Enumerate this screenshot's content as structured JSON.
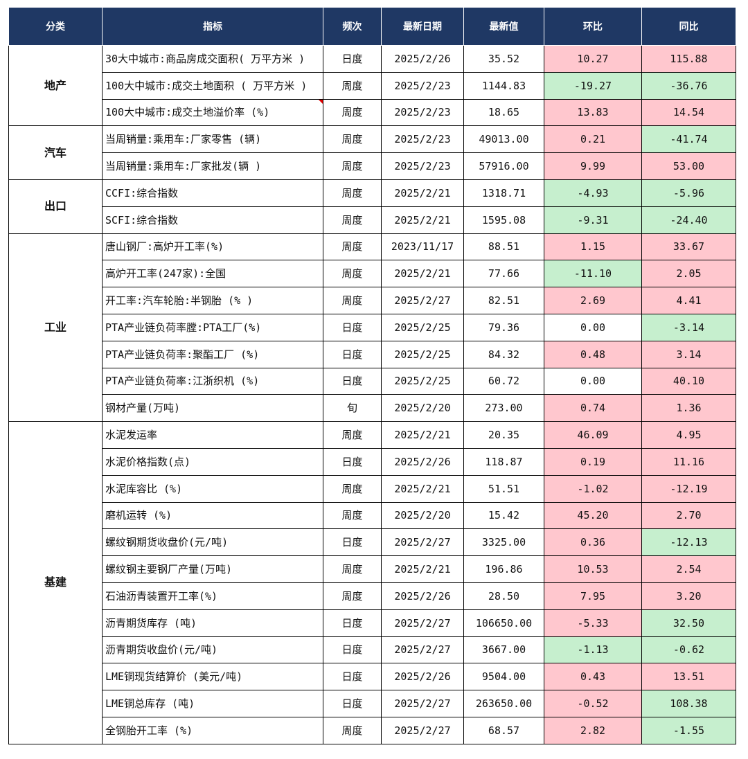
{
  "headers": [
    "分类",
    "指标",
    "频次",
    "最新日期",
    "最新值",
    "环比",
    "同比"
  ],
  "colors": {
    "header_bg": "#1f3864",
    "positive_bg": "#ffc7ce",
    "positive_text": "#c00000",
    "negative_bg": "#c6efce",
    "negative_text": "#006100"
  },
  "groups": [
    {
      "category": "地产",
      "rows": [
        {
          "indicator": "30大中城市:商品房成交面积( 万平方米 )",
          "freq": "日度",
          "date": "2025/2/26",
          "value": "35.52",
          "mom": "10.27",
          "yoy": "115.88"
        },
        {
          "indicator": "100大中城市:成交土地面积 ( 万平方米 )",
          "freq": "周度",
          "date": "2025/2/23",
          "value": "1144.83",
          "mom": "-19.27",
          "yoy": "-36.76"
        },
        {
          "indicator": "100大中城市:成交土地溢价率 (%)",
          "freq": "周度",
          "date": "2025/2/23",
          "value": "18.65",
          "mom": "13.83",
          "yoy": "14.54",
          "comment_marker": true
        }
      ]
    },
    {
      "category": "汽车",
      "rows": [
        {
          "indicator": "当周销量:乘用车:厂家零售 (辆)",
          "freq": "周度",
          "date": "2025/2/23",
          "value": "49013.00",
          "mom": "0.21",
          "yoy": "-41.74"
        },
        {
          "indicator": "当周销量:乘用车:厂家批发(辆 )",
          "freq": "周度",
          "date": "2025/2/23",
          "value": "57916.00",
          "mom": "9.99",
          "yoy": "53.00"
        }
      ]
    },
    {
      "category": "出口",
      "rows": [
        {
          "indicator": "CCFI:综合指数",
          "freq": "周度",
          "date": "2025/2/21",
          "value": "1318.71",
          "mom": "-4.93",
          "yoy": "-5.96"
        },
        {
          "indicator": "SCFI:综合指数",
          "freq": "周度",
          "date": "2025/2/21",
          "value": "1595.08",
          "mom": "-9.31",
          "yoy": "-24.40"
        }
      ]
    },
    {
      "category": "工业",
      "rows": [
        {
          "indicator": "唐山钢厂:高炉开工率(%)",
          "freq": "周度",
          "date": "2023/11/17",
          "value": "88.51",
          "mom": "1.15",
          "yoy": "33.67"
        },
        {
          "indicator": "高炉开工率(247家):全国",
          "freq": "周度",
          "date": "2025/2/21",
          "value": "77.66",
          "mom": "-11.10",
          "yoy": "2.05"
        },
        {
          "indicator": "开工率:汽车轮胎:半钢胎 (% )",
          "freq": "周度",
          "date": "2025/2/27",
          "value": "82.51",
          "mom": "2.69",
          "yoy": "4.41"
        },
        {
          "indicator": "PTA产业链负荷率膛:PTA工厂(%)",
          "freq": "日度",
          "date": "2025/2/25",
          "value": "79.36",
          "mom": "0.00",
          "yoy": "-3.14"
        },
        {
          "indicator": "PTA产业链负荷率:聚酯工厂 (%)",
          "freq": "日度",
          "date": "2025/2/25",
          "value": "84.32",
          "mom": "0.48",
          "yoy": "3.14"
        },
        {
          "indicator": "PTA产业链负荷率:江浙织机 (%)",
          "freq": "日度",
          "date": "2025/2/25",
          "value": "60.72",
          "mom": "0.00",
          "yoy": "40.10"
        },
        {
          "indicator": "钢材产量(万吨)",
          "freq": "旬",
          "date": "2025/2/20",
          "value": "273.00",
          "mom": "0.74",
          "yoy": "1.36"
        }
      ]
    },
    {
      "category": "基建",
      "rows": [
        {
          "indicator": "水泥发运率",
          "freq": "周度",
          "date": "2025/2/21",
          "value": "20.35",
          "mom": "46.09",
          "yoy": "4.95"
        },
        {
          "indicator": "水泥价格指数(点)",
          "freq": "日度",
          "date": "2025/2/26",
          "value": "118.87",
          "mom": "0.19",
          "yoy": "11.16"
        },
        {
          "indicator": "水泥库容比 (%)",
          "freq": "周度",
          "date": "2025/2/21",
          "value": "51.51",
          "mom": "-1.02",
          "yoy": "-12.19",
          "force_mom": "pos",
          "force_yoy": "pos"
        },
        {
          "indicator": "磨机运转 (%)",
          "freq": "周度",
          "date": "2025/2/20",
          "value": "15.42",
          "mom": "45.20",
          "yoy": "2.70"
        },
        {
          "indicator": "螺纹钢期货收盘价(元/吨)",
          "freq": "日度",
          "date": "2025/2/27",
          "value": "3325.00",
          "mom": "0.36",
          "yoy": "-12.13"
        },
        {
          "indicator": "螺纹钢主要钢厂产量(万吨)",
          "freq": "周度",
          "date": "2025/2/21",
          "value": "196.86",
          "mom": "10.53",
          "yoy": "2.54"
        },
        {
          "indicator": "石油沥青装置开工率(%)",
          "freq": "周度",
          "date": "2025/2/26",
          "value": "28.50",
          "mom": "7.95",
          "yoy": "3.20"
        },
        {
          "indicator": "沥青期货库存 (吨)",
          "freq": "日度",
          "date": "2025/2/27",
          "value": "106650.00",
          "mom": "-5.33",
          "yoy": "32.50",
          "force_mom": "pos",
          "force_yoy": "neg"
        },
        {
          "indicator": "沥青期货收盘价(元/吨)",
          "freq": "日度",
          "date": "2025/2/27",
          "value": "3667.00",
          "mom": "-1.13",
          "yoy": "-0.62"
        },
        {
          "indicator": "LME铜现货结算价 (美元/吨)",
          "freq": "日度",
          "date": "2025/2/26",
          "value": "9504.00",
          "mom": "0.43",
          "yoy": "13.51"
        },
        {
          "indicator": "LME铜总库存 (吨)",
          "freq": "日度",
          "date": "2025/2/27",
          "value": "263650.00",
          "mom": "-0.52",
          "yoy": "108.38",
          "force_mom": "pos",
          "force_yoy": "neg"
        },
        {
          "indicator": "全钢胎开工率 (%)",
          "freq": "周度",
          "date": "2025/2/27",
          "value": "68.57",
          "mom": "2.82",
          "yoy": "-1.55"
        }
      ]
    }
  ]
}
